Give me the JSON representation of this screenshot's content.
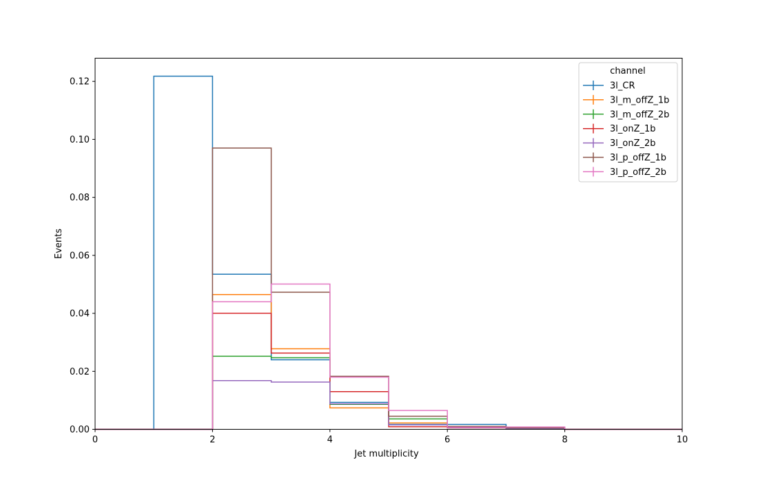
{
  "chart_data": {
    "type": "step",
    "xlabel": "Jet multiplicity",
    "ylabel": "Events",
    "xlim": [
      0,
      10
    ],
    "ylim": [
      0,
      0.128
    ],
    "xticks": [
      0,
      2,
      4,
      6,
      8,
      10
    ],
    "yticks": [
      0.0,
      0.02,
      0.04,
      0.06,
      0.08,
      0.1,
      0.12
    ],
    "xtick_labels": [
      "0",
      "2",
      "4",
      "6",
      "8",
      "10"
    ],
    "ytick_labels": [
      "0.00",
      "0.02",
      "0.04",
      "0.06",
      "0.08",
      "0.10",
      "0.12"
    ],
    "bin_edges": [
      0,
      1,
      2,
      3,
      4,
      5,
      6,
      7,
      8,
      9,
      10
    ],
    "grid": false,
    "legend": {
      "title": "channel",
      "placement": "top-right"
    },
    "series": [
      {
        "name": "3l_CR",
        "color": "#1f77b4",
        "values": [
          0,
          0.1218,
          0.0535,
          0.024,
          0.0093,
          0.0017,
          0.0017,
          0.0005,
          0,
          0
        ]
      },
      {
        "name": "3l_m_offZ_1b",
        "color": "#ff7f0e",
        "values": [
          0,
          0,
          0.0465,
          0.0278,
          0.0074,
          0.0022,
          0.0006,
          0.0003,
          0,
          0
        ]
      },
      {
        "name": "3l_m_offZ_2b",
        "color": "#2ca02c",
        "values": [
          0,
          0,
          0.0252,
          0.0247,
          0.0086,
          0.0036,
          0.001,
          0.0003,
          0,
          0
        ]
      },
      {
        "name": "3l_onZ_1b",
        "color": "#d62728",
        "values": [
          0,
          0,
          0.04,
          0.0263,
          0.013,
          0.0009,
          0.0005,
          0.0002,
          0,
          0
        ]
      },
      {
        "name": "3l_onZ_2b",
        "color": "#9467bd",
        "values": [
          0,
          0,
          0.0168,
          0.0163,
          0.0088,
          0.0015,
          0.0006,
          0.0002,
          0,
          0
        ]
      },
      {
        "name": "3l_p_offZ_1b",
        "color": "#8c564b",
        "values": [
          0,
          0,
          0.097,
          0.0473,
          0.0183,
          0.0045,
          0.001,
          0.0005,
          0,
          0
        ]
      },
      {
        "name": "3l_p_offZ_2b",
        "color": "#e377c2",
        "values": [
          0,
          0,
          0.044,
          0.0501,
          0.018,
          0.0065,
          0.0007,
          0.0008,
          0,
          0
        ]
      }
    ]
  }
}
